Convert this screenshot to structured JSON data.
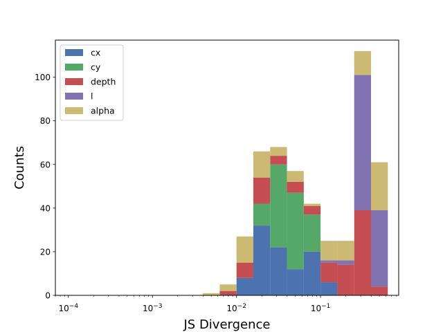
{
  "chart_data": {
    "type": "bar",
    "stacked": true,
    "xscale": "log",
    "xlabel": "JS Divergence",
    "ylabel": "Counts",
    "xlim": [
      7e-05,
      0.85
    ],
    "ylim": [
      0,
      117
    ],
    "x_ticks": [
      {
        "value": 0.0001,
        "label": "10^-4"
      },
      {
        "value": 0.001,
        "label": "10^-3"
      },
      {
        "value": 0.01,
        "label": "10^-2"
      },
      {
        "value": 0.1,
        "label": "10^-1"
      }
    ],
    "y_ticks": [
      0,
      20,
      40,
      60,
      80,
      100
    ],
    "bin_edges": [
      0.00398,
      0.00631,
      0.01,
      0.01585,
      0.02512,
      0.03981,
      0.0631,
      0.1,
      0.1585,
      0.2512,
      0.3981,
      0.631
    ],
    "series": [
      {
        "name": "cx",
        "color": "#4c72b0",
        "values": [
          0,
          0,
          8,
          32,
          22,
          12,
          20,
          6,
          0,
          0,
          0
        ]
      },
      {
        "name": "cy",
        "color": "#55a868",
        "values": [
          0,
          0,
          0,
          10,
          38,
          35,
          17,
          0,
          0,
          0,
          0
        ]
      },
      {
        "name": "depth",
        "color": "#c44e52",
        "values": [
          0,
          2,
          7,
          12,
          4,
          5,
          4,
          9,
          14,
          39,
          4
        ]
      },
      {
        "name": "l",
        "color": "#8172b2",
        "values": [
          0,
          0,
          0,
          0,
          0,
          0,
          0,
          1,
          2,
          62,
          35
        ]
      },
      {
        "name": "alpha",
        "color": "#ccb974",
        "values": [
          1,
          3,
          12,
          12,
          4,
          5,
          1,
          9,
          9,
          11,
          22
        ]
      }
    ],
    "legend": {
      "position": "top-left"
    }
  }
}
